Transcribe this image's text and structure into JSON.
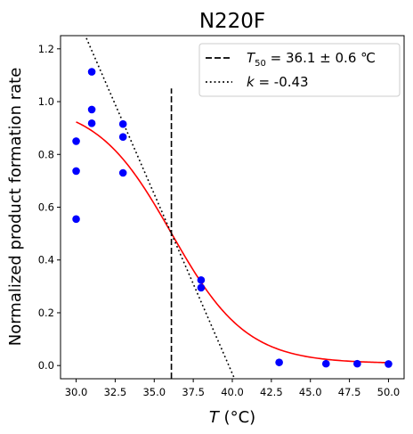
{
  "chart_data": {
    "type": "scatter",
    "title": "N220F",
    "xlabel": {
      "symbol": "T",
      "unit": "(°C)"
    },
    "ylabel": "Normalized product formation rate",
    "xlim": [
      29.0,
      51.0
    ],
    "ylim": [
      -0.05,
      1.25
    ],
    "xticks": [
      "30.0",
      "32.5",
      "35.0",
      "37.5",
      "40.0",
      "42.5",
      "45.0",
      "47.5",
      "50.0"
    ],
    "yticks": [
      "0.0",
      "0.2",
      "0.4",
      "0.6",
      "0.8",
      "1.0",
      "1.2"
    ],
    "grid": false,
    "legend_position": "top-right",
    "legend": [
      {
        "style": "dashed",
        "prefix": "T",
        "sub": "50",
        "text": " = 36.1 ± 0.6 ℃"
      },
      {
        "style": "dotted",
        "prefix": "k",
        "text": " = -0.43"
      }
    ],
    "points": {
      "color": "#0000ff",
      "x": [
        30,
        30,
        30,
        31,
        31,
        31,
        33,
        33,
        33,
        38,
        38,
        43,
        46,
        48,
        50
      ],
      "y": [
        0.555,
        0.737,
        0.85,
        1.113,
        0.97,
        0.918,
        0.915,
        0.866,
        0.73,
        0.324,
        0.295,
        0.012,
        0.007,
        0.007,
        0.006
      ]
    },
    "fit": {
      "color": "#ff0000",
      "model": "sigmoid",
      "top": 0.995,
      "bottom": 0.008,
      "t50": 36.1,
      "slope_factor": 2.4
    },
    "t50_line": {
      "x": 36.1,
      "y_range": [
        -0.05,
        1.05
      ],
      "color": "#000000"
    },
    "tangent": {
      "x0": 36.1,
      "y0": 0.5,
      "slope": -0.136,
      "x_range": [
        30.0,
        41.3
      ],
      "color": "#000000"
    }
  }
}
